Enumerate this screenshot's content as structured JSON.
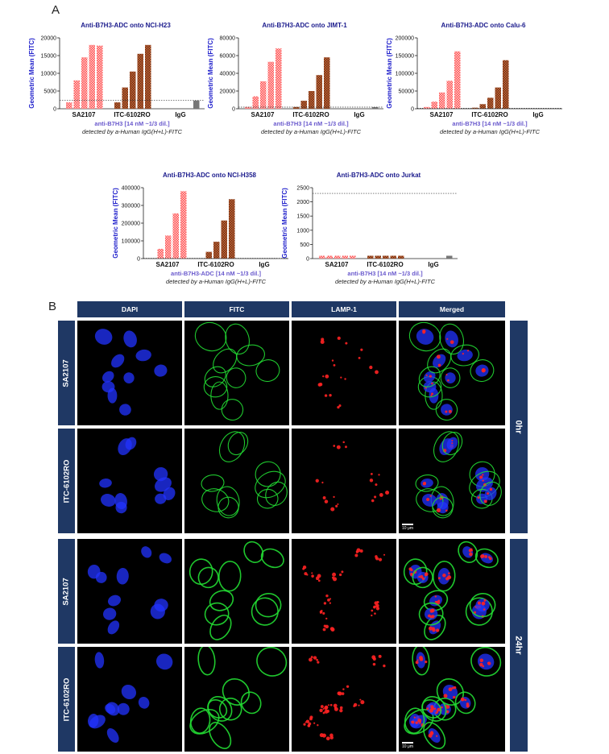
{
  "panel_a_label": "A",
  "panel_b_label": "B",
  "chart_data": [
    {
      "type": "bar",
      "title": "Anti-B7H3-ADC onto NCI-H23",
      "ylabel": "Geometric Mean (FITC)",
      "xlabel_line1": "anti-B7H3 [14 nM ~1/3 dil.]",
      "xlabel_line2": "detected by a-Human IgG(H+L)-FITC",
      "ylim": [
        0,
        20000
      ],
      "yticks": [
        "0",
        "5000",
        "10000",
        "15000",
        "20000"
      ],
      "groups": [
        "SA2107",
        "ITC-6102RO",
        "IgG"
      ],
      "series": [
        {
          "group": "SA2107",
          "values": [
            1800,
            8000,
            14500,
            18000,
            17800
          ]
        },
        {
          "group": "ITC-6102RO",
          "values": [
            1800,
            6000,
            10500,
            15500,
            18000
          ]
        },
        {
          "group": "IgG",
          "values": [
            0,
            0,
            0,
            0,
            2300
          ]
        }
      ],
      "threshold": 2400
    },
    {
      "type": "bar",
      "title": "Anti-B7H3-ADC onto JIMT-1",
      "ylabel": "Geometric Mean (FITC)",
      "xlabel_line1": "anti-B7H3 [14 nM ~1/3 dil.]",
      "xlabel_line2": "detected by a-Human IgG(H+L)-FITC",
      "ylim": [
        0,
        80000
      ],
      "yticks": [
        "0",
        "20000",
        "40000",
        "60000",
        "80000"
      ],
      "groups": [
        "SA2107",
        "ITC-6102RO",
        "IgG"
      ],
      "series": [
        {
          "group": "SA2107",
          "values": [
            2000,
            14000,
            31000,
            53000,
            68000
          ]
        },
        {
          "group": "ITC-6102RO",
          "values": [
            2000,
            9000,
            20000,
            38000,
            58000
          ]
        },
        {
          "group": "IgG",
          "values": [
            0,
            0,
            0,
            0,
            1800
          ]
        }
      ],
      "threshold": 1800
    },
    {
      "type": "bar",
      "title": "Anti-B7H3-ADC onto Calu-6",
      "ylabel": "Geometric Mean (FITC)",
      "xlabel_line1": "anti-B7H3 [14 nM ~1/3 dil.]",
      "xlabel_line2": "detected by a-Human IgG(H+L)-FITC",
      "ylim": [
        0,
        200000
      ],
      "yticks": [
        "0",
        "50000",
        "100000",
        "150000",
        "200000"
      ],
      "groups": [
        "SA2107",
        "ITC-6102RO",
        "IgG"
      ],
      "series": [
        {
          "group": "SA2107",
          "values": [
            5000,
            20000,
            46000,
            79000,
            162000
          ]
        },
        {
          "group": "ITC-6102RO",
          "values": [
            3000,
            13000,
            31000,
            60000,
            137000
          ]
        },
        {
          "group": "IgG",
          "values": [
            0,
            0,
            0,
            0,
            1500
          ]
        }
      ],
      "threshold": 1500
    },
    {
      "type": "bar",
      "title": "Anti-B7H3-ADC onto NCI-H358",
      "ylabel": "Geometric Mean (FITC)",
      "xlabel_line1": "anti-B7H3-ADC [14 nM ~1/3 dil.]",
      "xlabel_line2": "detected by a-Human IgG(H+L)-FITC",
      "ylim": [
        0,
        400000
      ],
      "yticks": [
        "0",
        "100000",
        "200000",
        "300000",
        "400000"
      ],
      "groups": [
        "SA2107",
        "ITC-6102RO",
        "IgG"
      ],
      "series": [
        {
          "group": "SA2107",
          "values": [
            0,
            55000,
            130000,
            255000,
            380000
          ]
        },
        {
          "group": "ITC-6102RO",
          "values": [
            0,
            38000,
            95000,
            215000,
            335000
          ]
        },
        {
          "group": "IgG",
          "values": [
            0,
            0,
            0,
            0,
            2000
          ]
        }
      ],
      "threshold": 2000
    },
    {
      "type": "bar",
      "title": "Anti-B7H3-ADC onto Jurkat",
      "ylabel": "Geometric Mean (FITC)",
      "xlabel_line1": "anti-B7H3 [14 nM ~1/3 dil.]",
      "xlabel_line2": "detected by a-Human IgG(H+L)-FITC",
      "ylim": [
        0,
        2500
      ],
      "yticks": [
        "0",
        "500",
        "1000",
        "1500",
        "2000",
        "2500"
      ],
      "groups": [
        "SA2107",
        "ITC-6102RO",
        "IgG"
      ],
      "series": [
        {
          "group": "SA2107",
          "values": [
            100,
            100,
            100,
            100,
            100
          ]
        },
        {
          "group": "ITC-6102RO",
          "values": [
            100,
            100,
            100,
            100,
            100
          ]
        },
        {
          "group": "IgG",
          "values": [
            0,
            0,
            0,
            0,
            100
          ]
        }
      ],
      "threshold": 2300
    }
  ],
  "colors": {
    "sa2107_bar": "#ff4d4d",
    "itc_bar": "#c8693c",
    "igg_bar": "#777777",
    "header_bg": "#1f3864",
    "dapi": "#2233ff",
    "fitc": "#22dd33",
    "lamp1": "#ff2222"
  },
  "micro": {
    "columns": [
      "DAPI",
      "FITC",
      "LAMP-1",
      "Merged"
    ],
    "rows": [
      "SA2107",
      "ITC-6102RO",
      "SA2107",
      "ITC-6102RO"
    ],
    "timepoints": [
      "0hr",
      "24hr"
    ],
    "scalebar": "10 μm"
  }
}
